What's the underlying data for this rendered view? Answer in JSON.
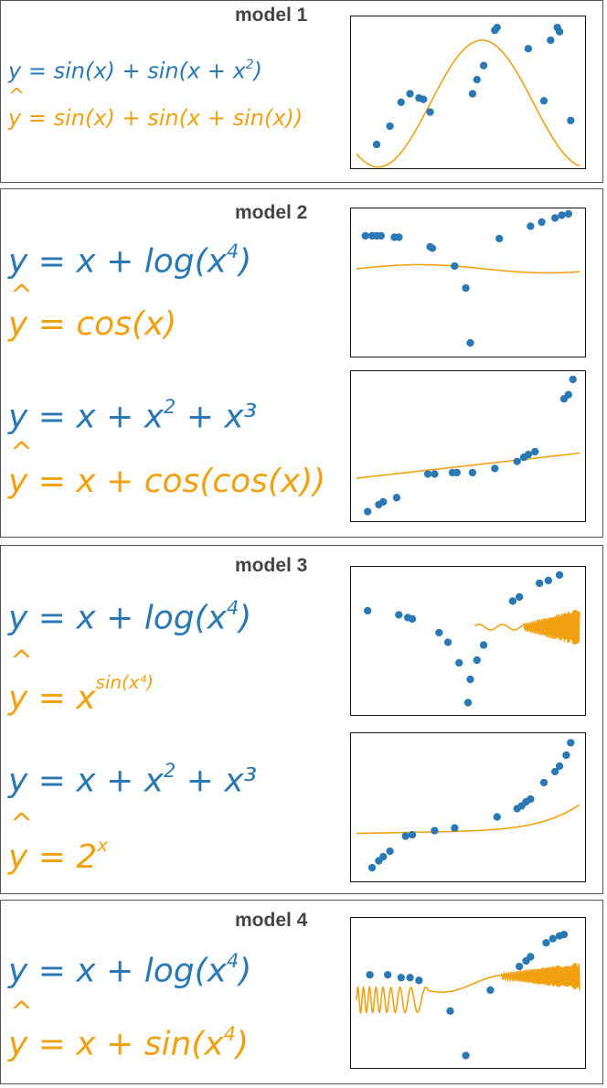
{
  "colors": {
    "true_eq": "#2a78b4",
    "pred_eq": "#f0a010",
    "points": "#2a78b4",
    "curve": "#f0a010"
  },
  "models": [
    {
      "title": "model 1",
      "rows": [
        {
          "y_eq": "y = sin(x) + sin(x + x",
          "y_sup": "2",
          "y_tail": ")",
          "yhat_prefix": "y",
          "yhat_eq": " = sin(x) + sin(x + sin(x))",
          "yhat_sup": "",
          "yhat_tail": "",
          "chart_data": {
            "type": "scatter",
            "points": [
              [
                0.09,
                0.13
              ],
              [
                0.15,
                0.26
              ],
              [
                0.2,
                0.43
              ],
              [
                0.24,
                0.49
              ],
              [
                0.28,
                0.46
              ],
              [
                0.3,
                0.45
              ],
              [
                0.33,
                0.36
              ],
              [
                0.52,
                0.49
              ],
              [
                0.54,
                0.59
              ],
              [
                0.57,
                0.69
              ],
              [
                0.62,
                0.94
              ],
              [
                0.63,
                0.96
              ],
              [
                0.77,
                0.81
              ],
              [
                0.84,
                0.44
              ],
              [
                0.87,
                0.87
              ],
              [
                0.9,
                0.96
              ],
              [
                0.91,
                0.93
              ],
              [
                0.96,
                0.3
              ]
            ],
            "curve": "sine"
          }
        }
      ]
    },
    {
      "title": "model 2",
      "rows": [
        {
          "y_eq": "y = x + log(x",
          "y_sup": "4",
          "y_tail": ")",
          "yhat_prefix": "y",
          "yhat_eq": " = cos(x)",
          "yhat_sup": "",
          "yhat_tail": "",
          "chart_data": {
            "type": "scatter",
            "points": [
              [
                0.04,
                0.84
              ],
              [
                0.07,
                0.84
              ],
              [
                0.09,
                0.84
              ],
              [
                0.11,
                0.84
              ],
              [
                0.17,
                0.83
              ],
              [
                0.19,
                0.83
              ],
              [
                0.33,
                0.76
              ],
              [
                0.34,
                0.75
              ],
              [
                0.44,
                0.62
              ],
              [
                0.49,
                0.46
              ],
              [
                0.51,
                0.06
              ],
              [
                0.64,
                0.82
              ],
              [
                0.78,
                0.91
              ],
              [
                0.83,
                0.94
              ],
              [
                0.89,
                0.97
              ],
              [
                0.92,
                0.99
              ],
              [
                0.95,
                1.0
              ]
            ],
            "curve": "flat"
          }
        },
        {
          "y_eq": "y = x + x",
          "y_sup": "2",
          "y_tail": " + x³",
          "yhat_prefix": "y",
          "yhat_eq": " = x + cos(cos(x))",
          "yhat_sup": "",
          "yhat_tail": "",
          "chart_data": {
            "type": "scatter",
            "points": [
              [
                0.05,
                0.03
              ],
              [
                0.1,
                0.08
              ],
              [
                0.12,
                0.1
              ],
              [
                0.18,
                0.13
              ],
              [
                0.32,
                0.3
              ],
              [
                0.35,
                0.3
              ],
              [
                0.43,
                0.31
              ],
              [
                0.45,
                0.31
              ],
              [
                0.52,
                0.31
              ],
              [
                0.62,
                0.34
              ],
              [
                0.72,
                0.39
              ],
              [
                0.75,
                0.42
              ],
              [
                0.77,
                0.44
              ],
              [
                0.8,
                0.46
              ],
              [
                0.93,
                0.84
              ],
              [
                0.95,
                0.87
              ],
              [
                0.97,
                0.98
              ]
            ],
            "curve": "linear"
          }
        }
      ]
    },
    {
      "title": "model 3",
      "rows": [
        {
          "y_eq": "y = x + log(x",
          "y_sup": "4",
          "y_tail": ")",
          "yhat_prefix": "y",
          "yhat_eq": " = x",
          "yhat_sup": "sin(x⁴)",
          "yhat_tail": "",
          "chart_data": {
            "type": "scatter",
            "points": [
              [
                0.05,
                0.72
              ],
              [
                0.19,
                0.69
              ],
              [
                0.23,
                0.67
              ],
              [
                0.25,
                0.66
              ],
              [
                0.37,
                0.56
              ],
              [
                0.41,
                0.49
              ],
              [
                0.46,
                0.34
              ],
              [
                0.51,
                0.22
              ],
              [
                0.5,
                0.05
              ],
              [
                0.54,
                0.36
              ],
              [
                0.57,
                0.47
              ],
              [
                0.7,
                0.79
              ],
              [
                0.73,
                0.82
              ],
              [
                0.82,
                0.92
              ],
              [
                0.86,
                0.94
              ],
              [
                0.91,
                0.98
              ]
            ],
            "curve": "oscillating-right"
          }
        },
        {
          "y_eq": "y = x + x",
          "y_sup": "2",
          "y_tail": " + x³",
          "yhat_prefix": "y",
          "yhat_eq": " = 2",
          "yhat_sup": "x",
          "yhat_tail": "",
          "chart_data": {
            "type": "scatter",
            "points": [
              [
                0.07,
                0.06
              ],
              [
                0.1,
                0.11
              ],
              [
                0.12,
                0.14
              ],
              [
                0.15,
                0.18
              ],
              [
                0.22,
                0.29
              ],
              [
                0.25,
                0.3
              ],
              [
                0.35,
                0.33
              ],
              [
                0.44,
                0.35
              ],
              [
                0.63,
                0.43
              ],
              [
                0.72,
                0.49
              ],
              [
                0.74,
                0.51
              ],
              [
                0.76,
                0.54
              ],
              [
                0.78,
                0.56
              ],
              [
                0.84,
                0.68
              ],
              [
                0.89,
                0.76
              ],
              [
                0.91,
                0.8
              ],
              [
                0.94,
                0.88
              ],
              [
                0.96,
                0.97
              ]
            ],
            "curve": "exponential"
          }
        }
      ]
    },
    {
      "title": "model 4",
      "rows": [
        {
          "y_eq": "y = x + log(x",
          "y_sup": "4",
          "y_tail": ")",
          "yhat_prefix": "y",
          "yhat_eq": " = x + sin(x",
          "yhat_sup": "4",
          "yhat_tail": ")",
          "chart_data": {
            "type": "scatter",
            "points": [
              [
                0.06,
                0.63
              ],
              [
                0.14,
                0.63
              ],
              [
                0.2,
                0.61
              ],
              [
                0.24,
                0.61
              ],
              [
                0.28,
                0.59
              ],
              [
                0.42,
                0.37
              ],
              [
                0.49,
                0.05
              ],
              [
                0.6,
                0.52
              ],
              [
                0.73,
                0.69
              ],
              [
                0.76,
                0.73
              ],
              [
                0.78,
                0.76
              ],
              [
                0.85,
                0.86
              ],
              [
                0.88,
                0.89
              ],
              [
                0.91,
                0.91
              ],
              [
                0.93,
                0.92
              ]
            ],
            "curve": "oscillating-both"
          }
        }
      ]
    }
  ]
}
